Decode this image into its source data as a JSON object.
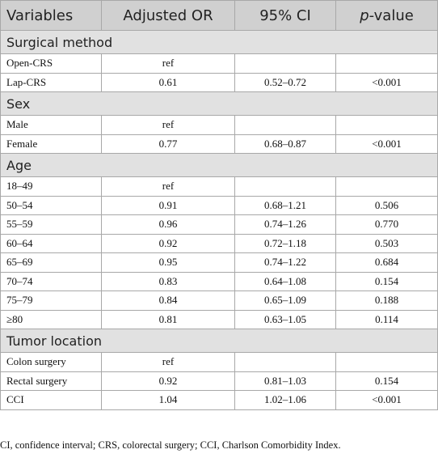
{
  "table": {
    "header": [
      "Variables",
      "Adjusted OR",
      "95% CI",
      [
        "p",
        "-value"
      ]
    ],
    "sections": [
      {
        "title": "Surgical method",
        "rows": [
          [
            "Open-CRS",
            "ref"
          ],
          [
            "Lap-CRS",
            "0.61",
            "0.52–0.72",
            "<0.001"
          ]
        ]
      },
      {
        "title": "Sex",
        "rows": [
          [
            "Male",
            "ref"
          ],
          [
            "Female",
            "0.77",
            "0.68–0.87",
            "<0.001"
          ]
        ]
      },
      {
        "title": "Age",
        "rows": [
          [
            "18–49",
            "ref"
          ],
          [
            "50–54",
            "0.91",
            "0.68–1.21",
            "0.506"
          ],
          [
            "55–59",
            "0.96",
            "0.74–1.26",
            "0.770"
          ],
          [
            "60–64",
            "0.92",
            "0.72–1.18",
            "0.503"
          ],
          [
            "65–69",
            "0.95",
            "0.74–1.22",
            "0.684"
          ],
          [
            "70–74",
            "0.83",
            "0.64–1.08",
            "0.154"
          ],
          [
            "75–79",
            "0.84",
            "0.65–1.09",
            "0.188"
          ],
          [
            "≥80",
            "0.81",
            "0.63–1.05",
            "0.114"
          ]
        ]
      },
      {
        "title": "Tumor location",
        "rows": [
          [
            "Colon surgery",
            "ref"
          ],
          [
            "Rectal surgery",
            "0.92",
            "0.81–1.03",
            "0.154"
          ],
          [
            "CCI",
            "1.04",
            "1.02–1.06",
            "<0.001"
          ]
        ]
      }
    ]
  },
  "footnote": "CI, confidence interval; CRS, colorectal surgery; CCI, Charlson Comorbidity Index."
}
